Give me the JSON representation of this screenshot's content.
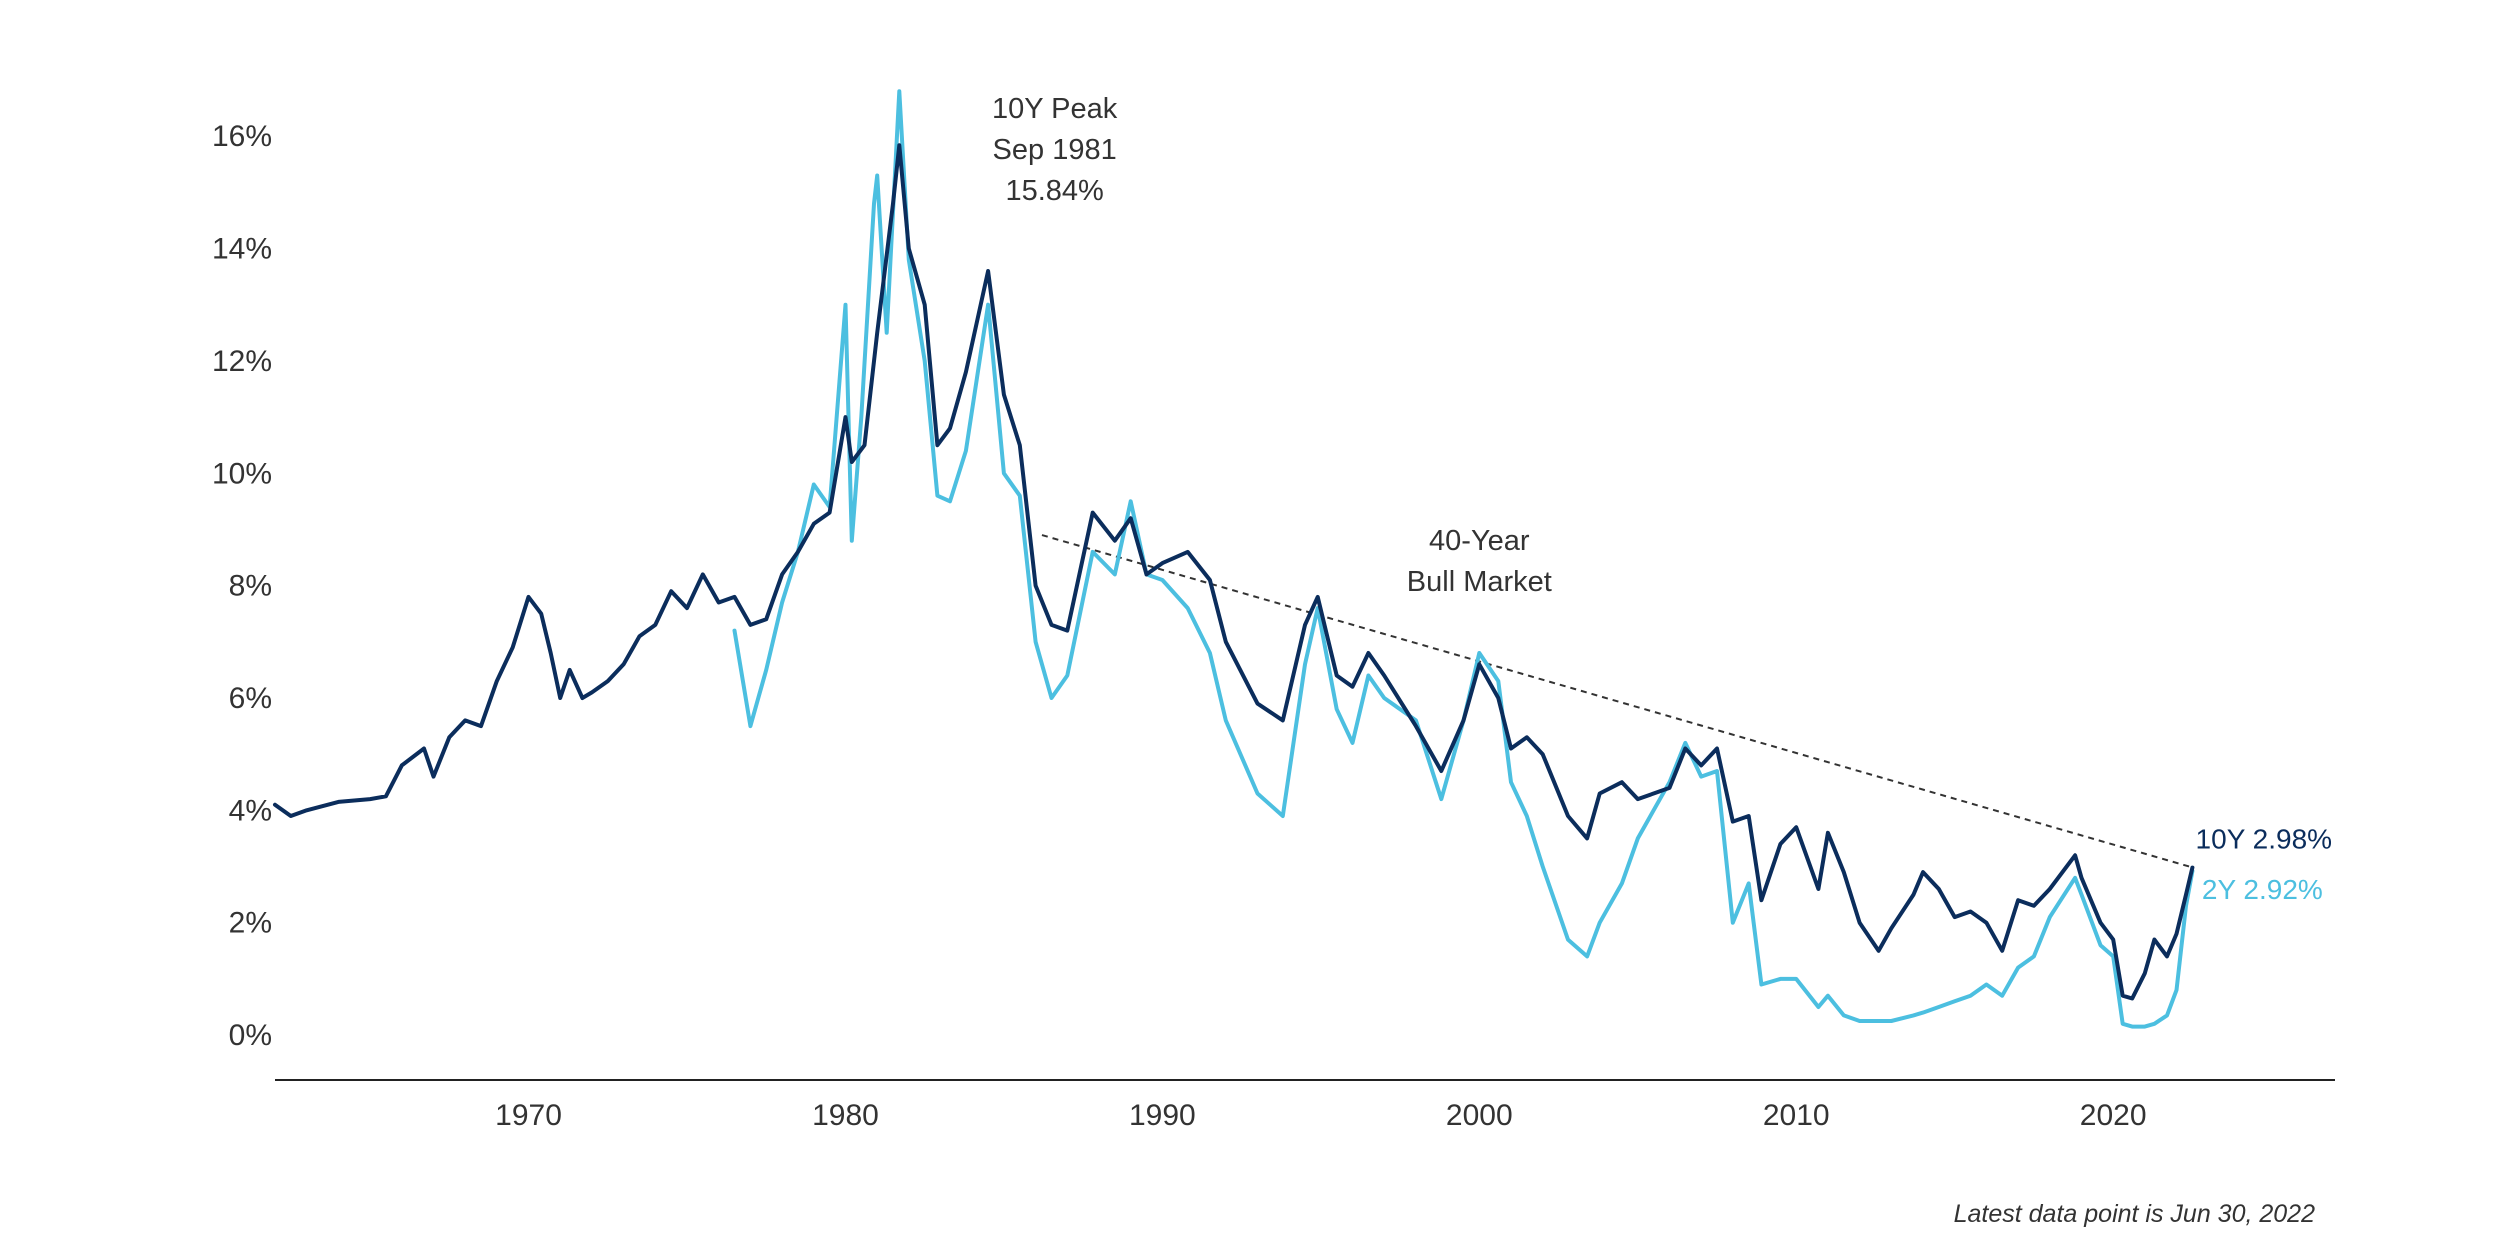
{
  "chart_data": {
    "type": "line",
    "title": "",
    "xlabel": "",
    "ylabel": "",
    "xlim": [
      1962,
      2027
    ],
    "ylim": [
      -0.8,
      17
    ],
    "x_ticks": [
      1970,
      1980,
      1990,
      2000,
      2010,
      2020
    ],
    "x_tick_labels": [
      "1970",
      "1980",
      "1990",
      "2000",
      "2010",
      "2020"
    ],
    "y_ticks": [
      0,
      2,
      4,
      6,
      8,
      10,
      12,
      14,
      16
    ],
    "y_tick_labels": [
      "0%",
      "2%",
      "4%",
      "6%",
      "8%",
      "10%",
      "12%",
      "14%",
      "16%"
    ],
    "grid": false,
    "colors": {
      "ten_year": "#0b2d5c",
      "two_year": "#4cbfe0",
      "trend": "#333333",
      "axis": "#222222"
    },
    "series": [
      {
        "key": "ten_year",
        "x": [
          1962.0,
          1962.5,
          1963.0,
          1964.0,
          1965.0,
          1965.5,
          1966.0,
          1966.7,
          1967.0,
          1967.5,
          1968.0,
          1968.5,
          1969.0,
          1969.5,
          1970.0,
          1970.4,
          1970.7,
          1971.0,
          1971.3,
          1971.7,
          1972.0,
          1972.5,
          1973.0,
          1973.5,
          1974.0,
          1974.5,
          1975.0,
          1975.5,
          1976.0,
          1976.5,
          1977.0,
          1977.5,
          1978.0,
          1978.5,
          1979.0,
          1979.5,
          1980.0,
          1980.2,
          1980.6,
          1981.0,
          1981.5,
          1981.7,
          1982.0,
          1982.5,
          1982.9,
          1983.3,
          1983.8,
          1984.5,
          1985.0,
          1985.5,
          1986.0,
          1986.5,
          1987.0,
          1987.8,
          1988.5,
          1989.0,
          1989.5,
          1990.0,
          1990.8,
          1991.5,
          1992.0,
          1993.0,
          1993.8,
          1994.5,
          1994.9,
          1995.5,
          1996.0,
          1996.5,
          1997.0,
          1998.0,
          1998.8,
          1999.5,
          2000.0,
          2000.6,
          2001.0,
          2001.5,
          2002.0,
          2002.8,
          2003.4,
          2003.8,
          2004.5,
          2005.0,
          2005.5,
          2006.0,
          2006.5,
          2007.0,
          2007.5,
          2008.0,
          2008.5,
          2008.9,
          2009.5,
          2010.0,
          2010.7,
          2011.0,
          2011.5,
          2012.0,
          2012.6,
          2013.0,
          2013.7,
          2014.0,
          2014.5,
          2015.0,
          2015.5,
          2016.0,
          2016.5,
          2017.0,
          2017.5,
          2018.0,
          2018.8,
          2019.0,
          2019.6,
          2020.0,
          2020.3,
          2020.6,
          2021.0,
          2021.3,
          2021.7,
          2022.0,
          2022.3,
          2022.5
        ],
        "y": [
          4.1,
          3.9,
          4.0,
          4.15,
          4.2,
          4.25,
          4.8,
          5.1,
          4.6,
          5.3,
          5.6,
          5.5,
          6.3,
          6.9,
          7.8,
          7.5,
          6.8,
          6.0,
          6.5,
          6.0,
          6.1,
          6.3,
          6.6,
          7.1,
          7.3,
          7.9,
          7.6,
          8.2,
          7.7,
          7.8,
          7.3,
          7.4,
          8.2,
          8.6,
          9.1,
          9.3,
          11.0,
          10.2,
          10.5,
          12.5,
          14.8,
          15.84,
          14.0,
          13.0,
          10.5,
          10.8,
          11.8,
          13.6,
          11.4,
          10.5,
          8.0,
          7.3,
          7.2,
          9.3,
          8.8,
          9.2,
          8.2,
          8.4,
          8.6,
          8.1,
          7.0,
          5.9,
          5.6,
          7.3,
          7.8,
          6.4,
          6.2,
          6.8,
          6.4,
          5.5,
          4.7,
          5.6,
          6.6,
          6.0,
          5.1,
          5.3,
          5.0,
          3.9,
          3.5,
          4.3,
          4.5,
          4.2,
          4.3,
          4.4,
          5.1,
          4.8,
          5.1,
          3.8,
          3.9,
          2.4,
          3.4,
          3.7,
          2.6,
          3.6,
          2.9,
          2.0,
          1.5,
          1.9,
          2.5,
          2.9,
          2.6,
          2.1,
          2.2,
          2.0,
          1.5,
          2.4,
          2.3,
          2.6,
          3.2,
          2.8,
          2.0,
          1.7,
          0.7,
          0.65,
          1.1,
          1.7,
          1.4,
          1.8,
          2.5,
          2.98
        ]
      },
      {
        "key": "two_year",
        "x": [
          1976.5,
          1977.0,
          1977.5,
          1978.0,
          1978.5,
          1979.0,
          1979.5,
          1980.0,
          1980.2,
          1980.5,
          1980.9,
          1981.0,
          1981.3,
          1981.7,
          1982.0,
          1982.5,
          1982.9,
          1983.3,
          1983.8,
          1984.5,
          1985.0,
          1985.5,
          1986.0,
          1986.5,
          1987.0,
          1987.8,
          1988.5,
          1989.0,
          1989.5,
          1990.0,
          1990.8,
          1991.5,
          1992.0,
          1993.0,
          1993.8,
          1994.5,
          1994.9,
          1995.5,
          1996.0,
          1996.5,
          1997.0,
          1998.0,
          1998.8,
          1999.5,
          2000.0,
          2000.6,
          2001.0,
          2001.5,
          2002.0,
          2002.8,
          2003.4,
          2003.8,
          2004.5,
          2005.0,
          2005.5,
          2006.0,
          2006.5,
          2007.0,
          2007.5,
          2008.0,
          2008.5,
          2008.9,
          2009.5,
          2010.0,
          2010.7,
          2011.0,
          2011.5,
          2012.0,
          2012.6,
          2013.0,
          2013.7,
          2014.0,
          2014.5,
          2015.0,
          2015.5,
          2016.0,
          2016.5,
          2017.0,
          2017.5,
          2018.0,
          2018.8,
          2019.0,
          2019.6,
          2020.0,
          2020.3,
          2020.6,
          2021.0,
          2021.3,
          2021.7,
          2022.0,
          2022.3,
          2022.5
        ],
        "y": [
          7.2,
          5.5,
          6.5,
          7.7,
          8.6,
          9.8,
          9.4,
          13.0,
          8.8,
          11.0,
          14.8,
          15.3,
          12.5,
          16.8,
          13.8,
          12.0,
          9.6,
          9.5,
          10.4,
          13.0,
          10.0,
          9.6,
          7.0,
          6.0,
          6.4,
          8.6,
          8.2,
          9.5,
          8.2,
          8.1,
          7.6,
          6.8,
          5.6,
          4.3,
          3.9,
          6.6,
          7.6,
          5.8,
          5.2,
          6.4,
          6.0,
          5.6,
          4.2,
          5.6,
          6.8,
          6.3,
          4.5,
          3.9,
          3.0,
          1.7,
          1.4,
          2.0,
          2.7,
          3.5,
          4.0,
          4.5,
          5.2,
          4.6,
          4.7,
          2.0,
          2.7,
          0.9,
          1.0,
          1.0,
          0.5,
          0.7,
          0.35,
          0.25,
          0.25,
          0.25,
          0.35,
          0.4,
          0.5,
          0.6,
          0.7,
          0.9,
          0.7,
          1.2,
          1.4,
          2.1,
          2.8,
          2.5,
          1.6,
          1.4,
          0.2,
          0.15,
          0.15,
          0.2,
          0.35,
          0.8,
          2.3,
          2.92
        ]
      }
    ],
    "trend_line": {
      "x": [
        1986.2,
        2022.4
      ],
      "y": [
        8.9,
        3.0
      ]
    },
    "annotations": [
      {
        "key": "peak",
        "lines": [
          "10Y Peak",
          "Sep 1981",
          "15.84%"
        ],
        "x": 1986.6,
        "y": 15.84
      },
      {
        "key": "bull",
        "lines": [
          "40-Year",
          "Bull Market"
        ],
        "x": 2000.0,
        "y": 7.95
      }
    ],
    "end_labels": [
      {
        "key": "ten_year",
        "text": "10Y 2.98%",
        "x": 2022.6,
        "y": 3.5
      },
      {
        "key": "two_year",
        "text": "2Y 2.92%",
        "x": 2022.8,
        "y": 2.6
      }
    ],
    "footnote": "Latest data point is Jun 30, 2022"
  }
}
